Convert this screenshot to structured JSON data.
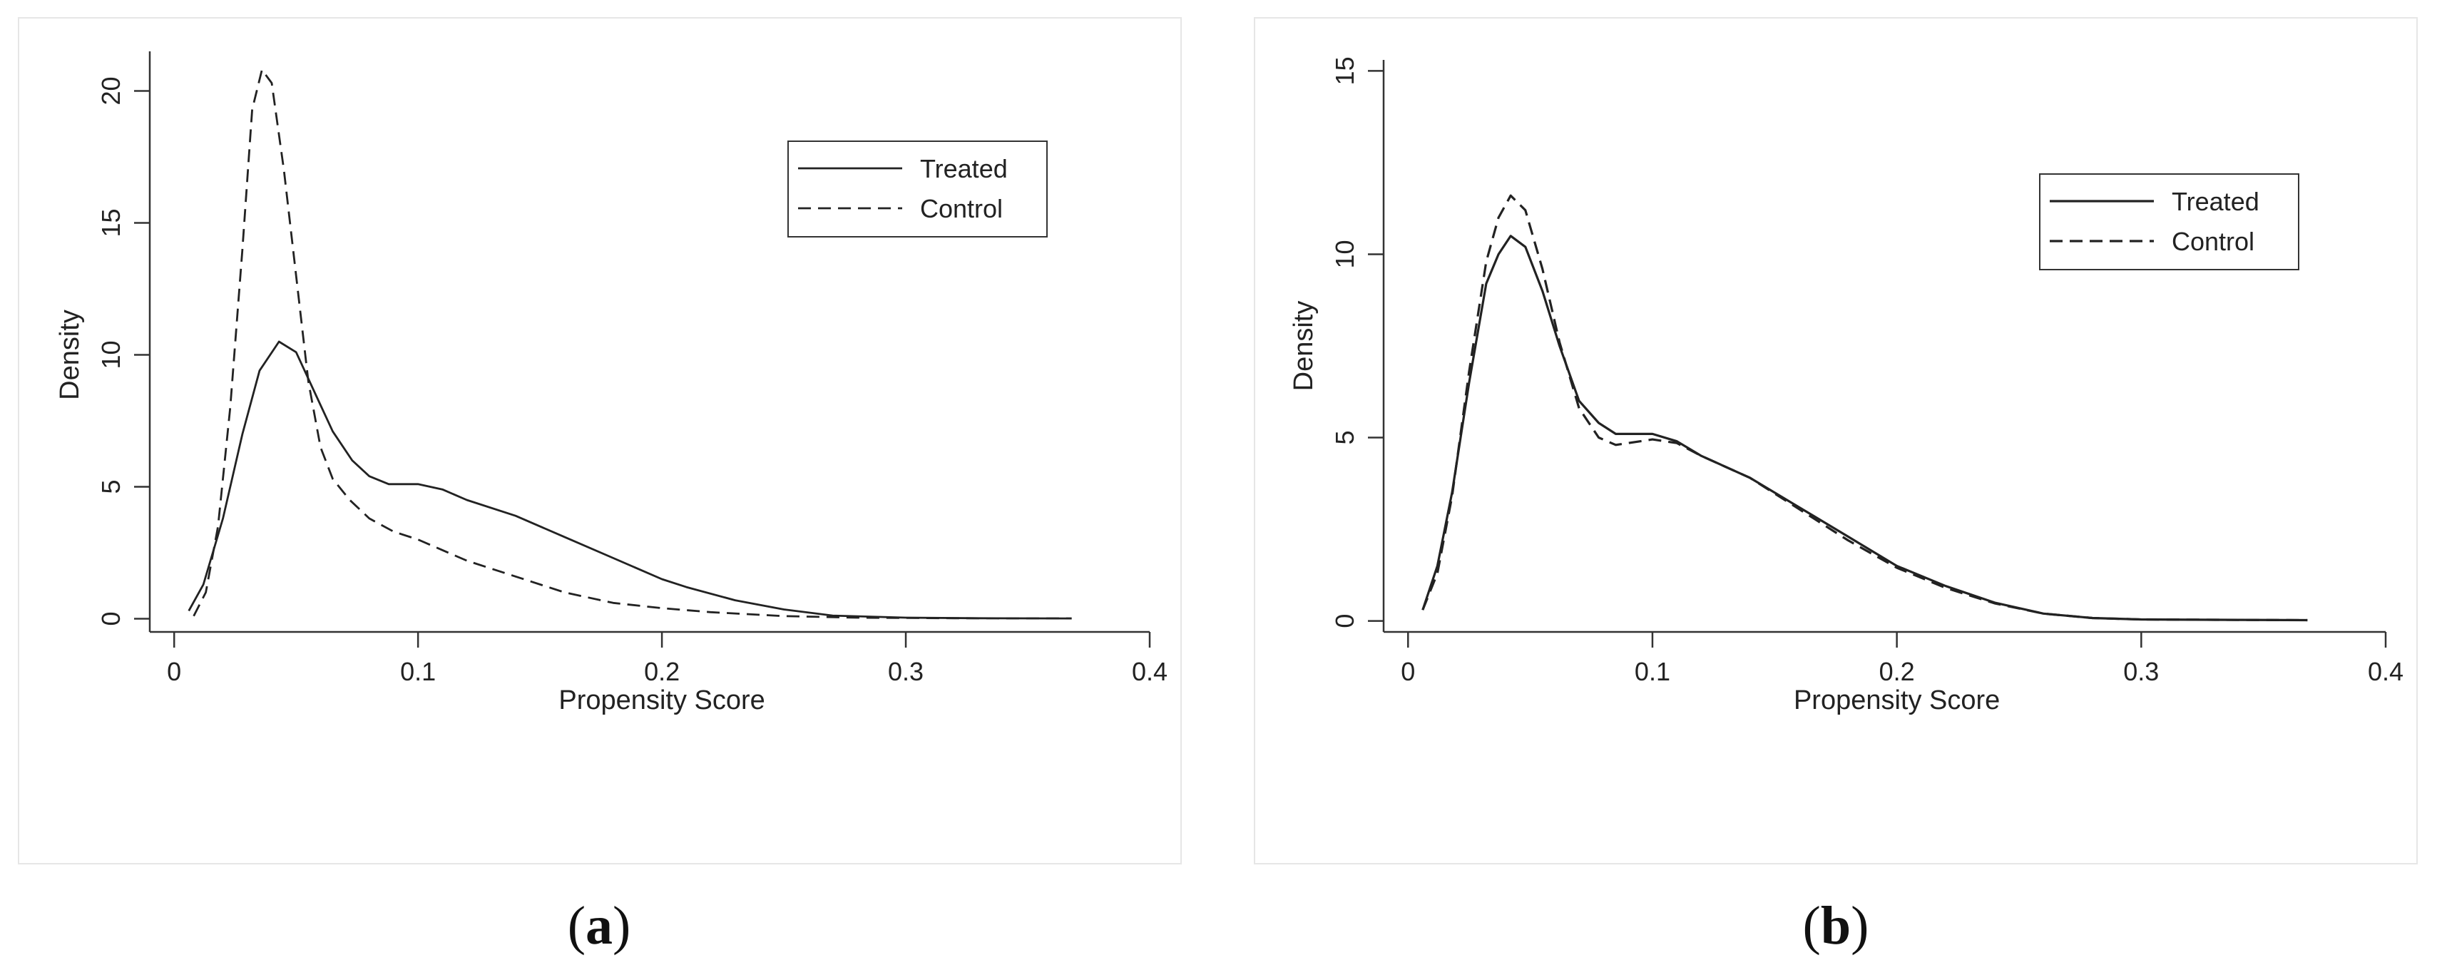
{
  "chart_data": [
    {
      "type": "line",
      "panel": "(a)",
      "panel_letter": "a",
      "xlabel": "Propensity Score",
      "ylabel": "Density",
      "xlim": [
        -0.01,
        0.4
      ],
      "ylim": [
        -0.5,
        21.5
      ],
      "xticks": [
        0,
        0.1,
        0.2,
        0.3,
        0.4
      ],
      "xtick_labels": [
        "0",
        "0.1",
        "0.2",
        "0.3",
        "0.4"
      ],
      "yticks": [
        0,
        5,
        10,
        15,
        20
      ],
      "ytick_labels": [
        "0",
        "5",
        "10",
        "15",
        "20"
      ],
      "legend_position": "top-right",
      "grid": false,
      "series": [
        {
          "name": "Treated",
          "style": "solid",
          "color": "#222222",
          "points": [
            [
              0.006,
              0.3
            ],
            [
              0.012,
              1.3
            ],
            [
              0.02,
              3.8
            ],
            [
              0.028,
              7.0
            ],
            [
              0.035,
              9.4
            ],
            [
              0.043,
              10.5
            ],
            [
              0.05,
              10.1
            ],
            [
              0.058,
              8.5
            ],
            [
              0.065,
              7.1
            ],
            [
              0.073,
              6.0
            ],
            [
              0.08,
              5.4
            ],
            [
              0.088,
              5.1
            ],
            [
              0.1,
              5.1
            ],
            [
              0.11,
              4.9
            ],
            [
              0.12,
              4.5
            ],
            [
              0.14,
              3.9
            ],
            [
              0.16,
              3.1
            ],
            [
              0.18,
              2.3
            ],
            [
              0.2,
              1.5
            ],
            [
              0.21,
              1.2
            ],
            [
              0.23,
              0.7
            ],
            [
              0.25,
              0.35
            ],
            [
              0.27,
              0.12
            ],
            [
              0.3,
              0.04
            ],
            [
              0.33,
              0.02
            ],
            [
              0.368,
              0.01
            ]
          ]
        },
        {
          "name": "Control",
          "style": "dashed",
          "color": "#222222",
          "points": [
            [
              0.008,
              0.1
            ],
            [
              0.013,
              1.0
            ],
            [
              0.018,
              3.5
            ],
            [
              0.023,
              8.0
            ],
            [
              0.028,
              14.0
            ],
            [
              0.032,
              19.3
            ],
            [
              0.036,
              20.8
            ],
            [
              0.04,
              20.3
            ],
            [
              0.045,
              17.0
            ],
            [
              0.05,
              13.0
            ],
            [
              0.055,
              9.0
            ],
            [
              0.06,
              6.5
            ],
            [
              0.065,
              5.3
            ],
            [
              0.072,
              4.5
            ],
            [
              0.08,
              3.8
            ],
            [
              0.09,
              3.3
            ],
            [
              0.1,
              3.0
            ],
            [
              0.11,
              2.6
            ],
            [
              0.12,
              2.2
            ],
            [
              0.14,
              1.6
            ],
            [
              0.16,
              1.0
            ],
            [
              0.18,
              0.6
            ],
            [
              0.2,
              0.4
            ],
            [
              0.22,
              0.25
            ],
            [
              0.25,
              0.1
            ],
            [
              0.28,
              0.04
            ],
            [
              0.32,
              0.02
            ],
            [
              0.368,
              0.01
            ]
          ]
        }
      ]
    },
    {
      "type": "line",
      "panel": "(b)",
      "panel_letter": "b",
      "xlabel": "Propensity Score",
      "ylabel": "Density",
      "xlim": [
        -0.01,
        0.4
      ],
      "ylim": [
        -0.3,
        15.3
      ],
      "xticks": [
        0,
        0.1,
        0.2,
        0.3,
        0.4
      ],
      "xtick_labels": [
        "0",
        "0.1",
        "0.2",
        "0.3",
        "0.4"
      ],
      "yticks": [
        0,
        5,
        10,
        15
      ],
      "ytick_labels": [
        "0",
        "5",
        "10",
        "15"
      ],
      "legend_position": "top-right",
      "grid": false,
      "series": [
        {
          "name": "Treated",
          "style": "solid",
          "color": "#222222",
          "points": [
            [
              0.006,
              0.3
            ],
            [
              0.012,
              1.5
            ],
            [
              0.018,
              3.5
            ],
            [
              0.025,
              6.5
            ],
            [
              0.032,
              9.2
            ],
            [
              0.037,
              10.0
            ],
            [
              0.042,
              10.5
            ],
            [
              0.048,
              10.2
            ],
            [
              0.055,
              9.0
            ],
            [
              0.062,
              7.5
            ],
            [
              0.07,
              6.0
            ],
            [
              0.078,
              5.4
            ],
            [
              0.085,
              5.1
            ],
            [
              0.1,
              5.1
            ],
            [
              0.11,
              4.9
            ],
            [
              0.12,
              4.5
            ],
            [
              0.14,
              3.9
            ],
            [
              0.16,
              3.1
            ],
            [
              0.18,
              2.3
            ],
            [
              0.2,
              1.5
            ],
            [
              0.22,
              0.95
            ],
            [
              0.24,
              0.5
            ],
            [
              0.26,
              0.2
            ],
            [
              0.28,
              0.08
            ],
            [
              0.3,
              0.04
            ],
            [
              0.33,
              0.03
            ],
            [
              0.368,
              0.02
            ]
          ]
        },
        {
          "name": "Control",
          "style": "dashed",
          "color": "#222222",
          "points": [
            [
              0.006,
              0.3
            ],
            [
              0.012,
              1.3
            ],
            [
              0.018,
              3.4
            ],
            [
              0.025,
              6.8
            ],
            [
              0.032,
              9.8
            ],
            [
              0.037,
              11.0
            ],
            [
              0.042,
              11.6
            ],
            [
              0.048,
              11.2
            ],
            [
              0.055,
              9.6
            ],
            [
              0.062,
              7.6
            ],
            [
              0.07,
              5.8
            ],
            [
              0.078,
              5.0
            ],
            [
              0.085,
              4.8
            ],
            [
              0.1,
              4.95
            ],
            [
              0.11,
              4.85
            ],
            [
              0.12,
              4.5
            ],
            [
              0.14,
              3.9
            ],
            [
              0.16,
              3.05
            ],
            [
              0.18,
              2.2
            ],
            [
              0.2,
              1.45
            ],
            [
              0.22,
              0.9
            ],
            [
              0.24,
              0.48
            ],
            [
              0.26,
              0.2
            ],
            [
              0.28,
              0.08
            ],
            [
              0.3,
              0.04
            ],
            [
              0.33,
              0.03
            ],
            [
              0.368,
              0.02
            ]
          ]
        }
      ]
    }
  ]
}
